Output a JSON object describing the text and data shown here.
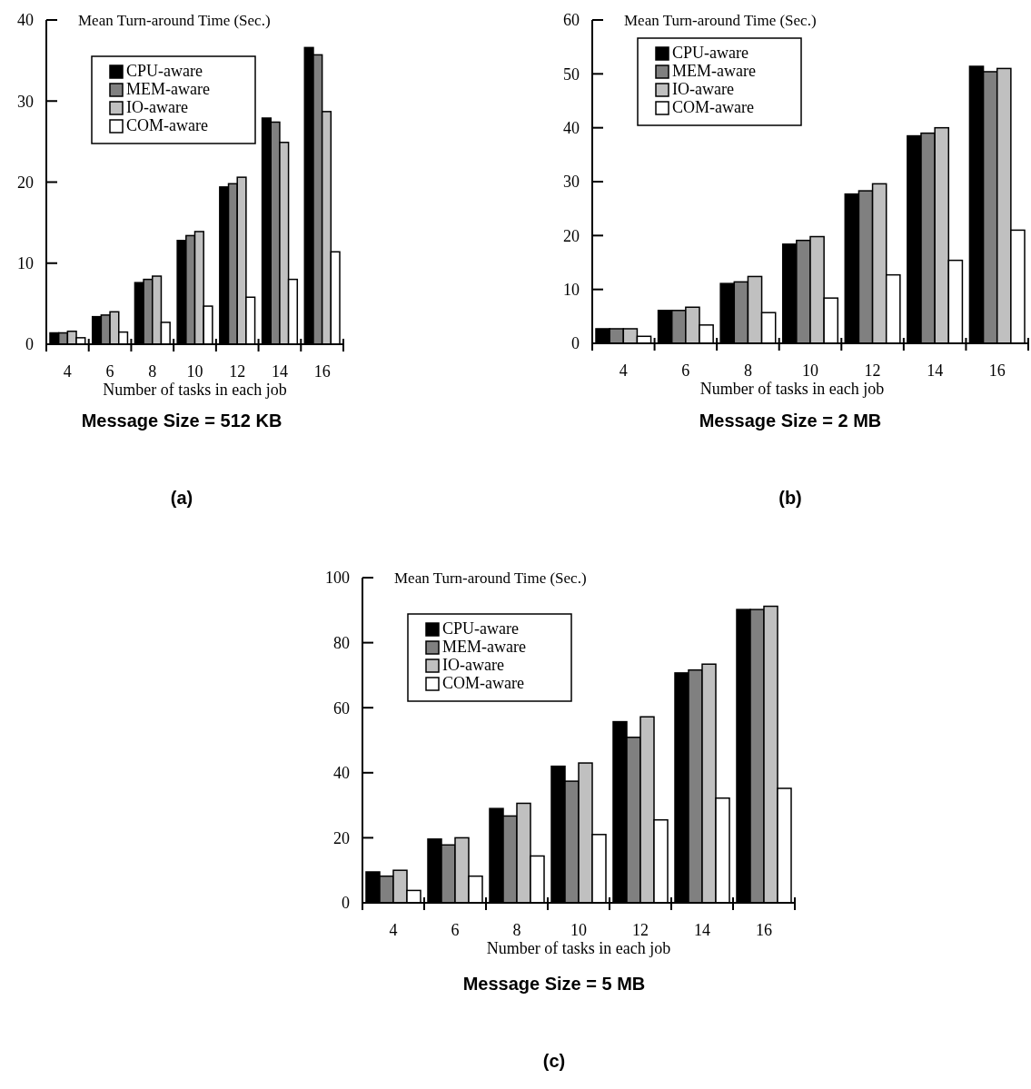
{
  "chart_data": [
    {
      "type": "bar",
      "title": "Message Size = 512 KB",
      "annotations": [
        "(a)"
      ],
      "ylabel": "Mean Turn-around Time (Sec.)",
      "xlabel": "Number of tasks in each job",
      "categories": [
        "4",
        "6",
        "8",
        "10",
        "12",
        "14",
        "16"
      ],
      "ylim": [
        0,
        40
      ],
      "yticks": [
        0,
        10,
        20,
        30,
        40
      ],
      "legend": "top left",
      "series": [
        {
          "name": "CPU-aware",
          "color": "#000000",
          "values": [
            1.4,
            3.4,
            7.6,
            12.8,
            19.4,
            27.9,
            36.6
          ]
        },
        {
          "name": "MEM-aware",
          "color": "#808080",
          "values": [
            1.4,
            3.6,
            8.0,
            13.4,
            19.8,
            27.4,
            35.7
          ]
        },
        {
          "name": "IO-aware",
          "color": "#c0c0c0",
          "values": [
            1.6,
            4.0,
            8.4,
            13.9,
            20.6,
            24.9,
            28.7
          ]
        },
        {
          "name": "COM-aware",
          "color": "#ffffff",
          "values": [
            0.8,
            1.5,
            2.7,
            4.7,
            5.8,
            8.0,
            11.4
          ]
        }
      ]
    },
    {
      "type": "bar",
      "title": "Message Size = 2 MB",
      "annotations": [
        "(b)"
      ],
      "ylabel": "Mean Turn-around Time (Sec.)",
      "xlabel": "Number of tasks in each job",
      "categories": [
        "4",
        "6",
        "8",
        "10",
        "12",
        "14",
        "16"
      ],
      "ylim": [
        0,
        60
      ],
      "yticks": [
        0,
        10,
        20,
        30,
        40,
        50,
        60
      ],
      "legend": "top left",
      "series": [
        {
          "name": "CPU-aware",
          "color": "#000000",
          "values": [
            2.7,
            6.1,
            11.1,
            18.4,
            27.7,
            38.5,
            51.4
          ]
        },
        {
          "name": "MEM-aware",
          "color": "#808080",
          "values": [
            2.7,
            6.1,
            11.4,
            19.1,
            28.3,
            39.0,
            50.4
          ]
        },
        {
          "name": "IO-aware",
          "color": "#c0c0c0",
          "values": [
            2.7,
            6.7,
            12.4,
            19.8,
            29.6,
            40.0,
            51.0
          ]
        },
        {
          "name": "COM-aware",
          "color": "#ffffff",
          "values": [
            1.3,
            3.4,
            5.7,
            8.4,
            12.7,
            15.4,
            21.0
          ]
        }
      ]
    },
    {
      "type": "bar",
      "title": "Message Size = 5 MB",
      "annotations": [
        "(c)"
      ],
      "ylabel": "Mean Turn-around Time (Sec.)",
      "xlabel": "Number of tasks in each job",
      "categories": [
        "4",
        "6",
        "8",
        "10",
        "12",
        "14",
        "16"
      ],
      "ylim": [
        0,
        100
      ],
      "yticks": [
        0,
        20,
        40,
        60,
        80,
        100
      ],
      "legend": "top left",
      "series": [
        {
          "name": "CPU-aware",
          "color": "#000000",
          "values": [
            9.5,
            19.6,
            29,
            42,
            55.7,
            70.7,
            90.2
          ]
        },
        {
          "name": "MEM-aware",
          "color": "#808080",
          "values": [
            8.2,
            17.8,
            26.7,
            37.4,
            50.9,
            71.6,
            90.2
          ]
        },
        {
          "name": "IO-aware",
          "color": "#c0c0c0",
          "values": [
            10,
            20,
            30.6,
            43,
            57.2,
            73.4,
            91.2
          ]
        },
        {
          "name": "COM-aware",
          "color": "#ffffff",
          "values": [
            3.8,
            8.2,
            14.4,
            21,
            25.5,
            32.2,
            35.2
          ]
        }
      ]
    }
  ]
}
